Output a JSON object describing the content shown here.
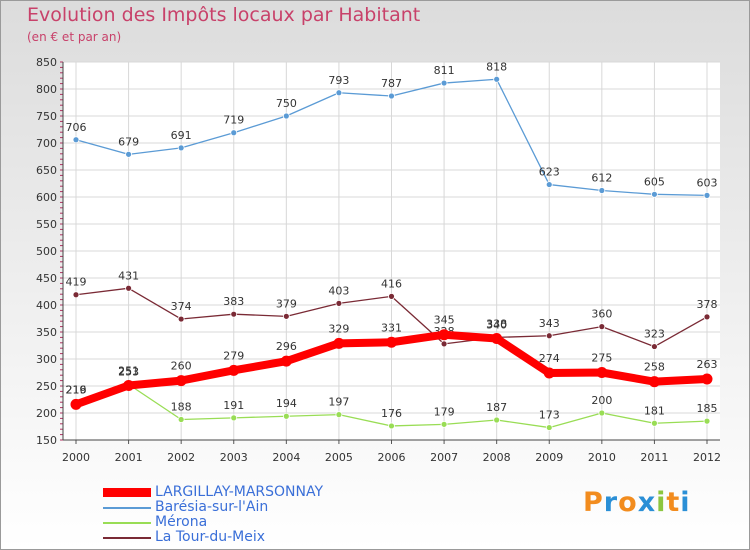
{
  "chart_data": {
    "type": "line",
    "title": "Evolution des Impôts locaux par Habitant",
    "subtitle": "(en € et par an)",
    "xlabel": "",
    "ylabel": "",
    "x": [
      "2000",
      "2001",
      "2002",
      "2003",
      "2004",
      "2005",
      "2006",
      "2007",
      "2008",
      "2009",
      "2010",
      "2011",
      "2012"
    ],
    "ylim": [
      150,
      850
    ],
    "yticks": [
      150,
      200,
      250,
      300,
      350,
      400,
      450,
      500,
      550,
      600,
      650,
      700,
      750,
      800,
      850
    ],
    "grid": true,
    "series": [
      {
        "name": "LARGILLAY-MARSONNAY",
        "color": "#ff0000",
        "values": [
          216,
          251,
          260,
          279,
          296,
          329,
          331,
          345,
          338,
          274,
          275,
          258,
          263
        ],
        "labels": [
          "216",
          "251",
          "260",
          "279",
          "296",
          "329",
          "331",
          "345",
          "338",
          "274",
          "275",
          "258",
          "263"
        ]
      },
      {
        "name": "Barésia-sur-l'Ain",
        "color": "#5b9bd5",
        "values": [
          706,
          679,
          691,
          719,
          750,
          793,
          787,
          811,
          818,
          623,
          612,
          605,
          603
        ],
        "labels": [
          "706",
          "679",
          "691",
          "719",
          "750",
          "793",
          "787",
          "811",
          "818",
          "623",
          "612",
          "605",
          "603"
        ]
      },
      {
        "name": "Mérona",
        "color": "#99dd55",
        "values": [
          219,
          253,
          188,
          191,
          194,
          197,
          176,
          179,
          187,
          173,
          200,
          181,
          185
        ],
        "labels": [
          "219",
          "253",
          "188",
          "191",
          "194",
          "197",
          "176",
          "179",
          "187",
          "173",
          "200",
          "181",
          "185"
        ]
      },
      {
        "name": "La Tour-du-Meix",
        "color": "#7a2a35",
        "values": [
          419,
          431,
          374,
          383,
          379,
          403,
          416,
          328,
          340,
          343,
          360,
          323,
          378
        ],
        "labels": [
          "419",
          "431",
          "374",
          "383",
          "379",
          "403",
          "416",
          "328",
          "340",
          "343",
          "360",
          "323",
          "378"
        ]
      }
    ]
  },
  "brand": {
    "text": "Proxiti",
    "letters": [
      "P",
      "r",
      "o",
      "x",
      "i",
      "t",
      "i"
    ]
  }
}
